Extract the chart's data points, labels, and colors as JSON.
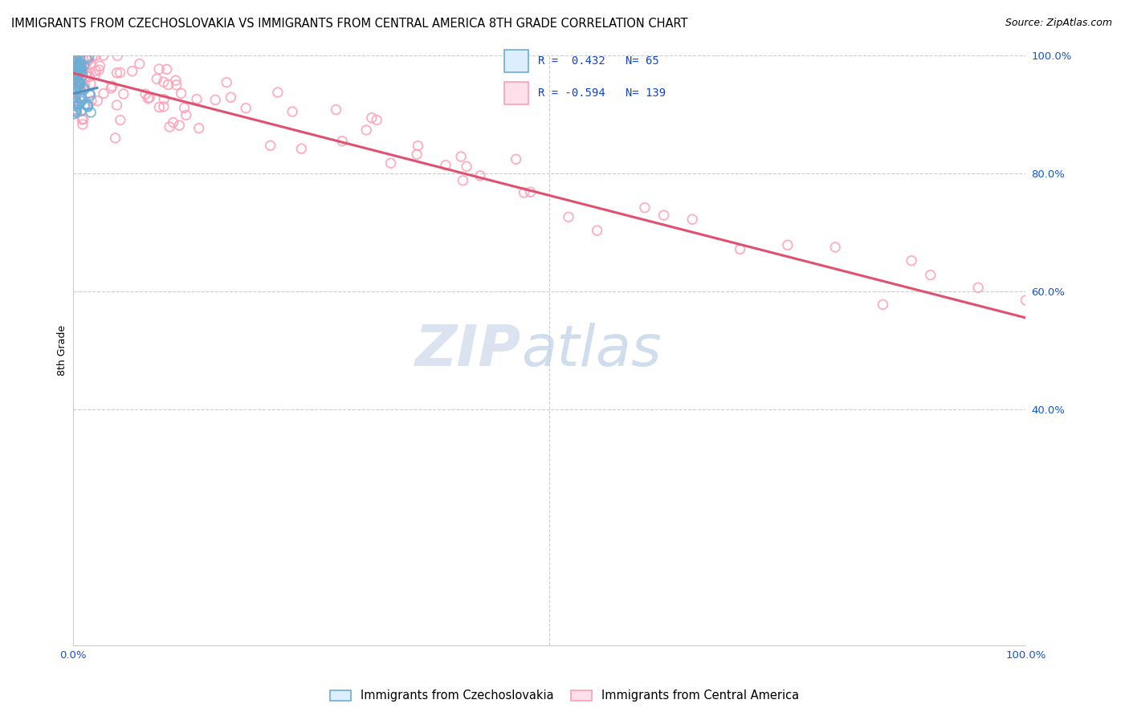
{
  "title": "IMMIGRANTS FROM CZECHOSLOVAKIA VS IMMIGRANTS FROM CENTRAL AMERICA 8TH GRADE CORRELATION CHART",
  "source": "Source: ZipAtlas.com",
  "ylabel": "8th Grade",
  "blue_R": 0.432,
  "blue_N": 65,
  "pink_R": -0.594,
  "pink_N": 139,
  "legend_label_blue": "Immigrants from Czechoslovakia",
  "legend_label_pink": "Immigrants from Central America",
  "blue_color": "#6baed6",
  "pink_color": "#ff9eb5",
  "pink_line_color": "#e05070",
  "blue_line_color": "#5090c0",
  "title_fontsize": 10.5,
  "source_fontsize": 9,
  "legend_fontsize": 10,
  "watermark_fontsize": 52,
  "xlim": [
    0,
    1.0
  ],
  "ylim": [
    0,
    1.0
  ],
  "yticks": [
    0.4,
    0.6,
    0.8,
    1.0
  ],
  "ytick_labels": [
    "40.0%",
    "60.0%",
    "80.0%",
    "100.0%"
  ],
  "xtick_positions": [
    0.0,
    0.5,
    1.0
  ],
  "xtick_labels": [
    "0.0%",
    "",
    "100.0%"
  ]
}
